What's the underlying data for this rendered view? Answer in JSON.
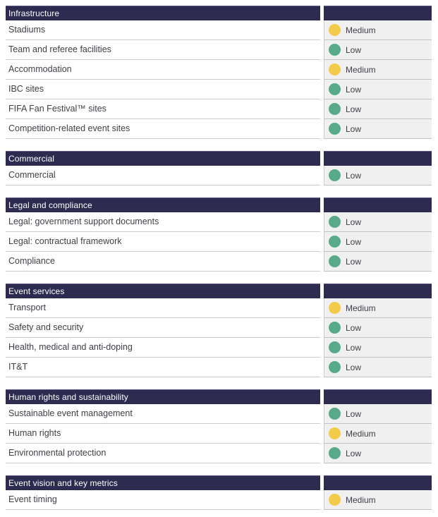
{
  "colors": {
    "header_bg": "#2e2b50",
    "header_top_line": "#5d5280",
    "cell_bg": "#f0f0f0",
    "medium": "#f2cb4a",
    "low": "#57aa8a"
  },
  "sections": [
    {
      "title": "Infrastructure",
      "rows": [
        {
          "label": "Stadiums",
          "rating": "Medium"
        },
        {
          "label": "Team and referee facilities",
          "rating": "Low"
        },
        {
          "label": "Accommodation",
          "rating": "Medium"
        },
        {
          "label": "IBC sites",
          "rating": "Low"
        },
        {
          "label": "FIFA Fan Festival™ sites",
          "rating": "Low"
        },
        {
          "label": "Competition-related event sites",
          "rating": "Low"
        }
      ]
    },
    {
      "title": "Commercial",
      "rows": [
        {
          "label": "Commercial",
          "rating": "Low"
        }
      ]
    },
    {
      "title": "Legal and compliance",
      "rows": [
        {
          "label": "Legal: government support documents",
          "rating": "Low"
        },
        {
          "label": "Legal: contractual framework",
          "rating": "Low"
        },
        {
          "label": "Compliance",
          "rating": "Low"
        }
      ]
    },
    {
      "title": "Event services",
      "rows": [
        {
          "label": "Transport",
          "rating": "Medium"
        },
        {
          "label": "Safety and security",
          "rating": "Low"
        },
        {
          "label": "Health, medical and anti-doping",
          "rating": "Low"
        },
        {
          "label": "IT&T",
          "rating": "Low"
        }
      ]
    },
    {
      "title": "Human rights and sustainability",
      "rows": [
        {
          "label": "Sustainable event management",
          "rating": "Low"
        },
        {
          "label": "Human rights",
          "rating": "Medium"
        },
        {
          "label": "Environmental protection",
          "rating": "Low"
        }
      ]
    },
    {
      "title": "Event vision and key metrics",
      "rows": [
        {
          "label": "Event timing",
          "rating": "Medium"
        }
      ]
    }
  ]
}
